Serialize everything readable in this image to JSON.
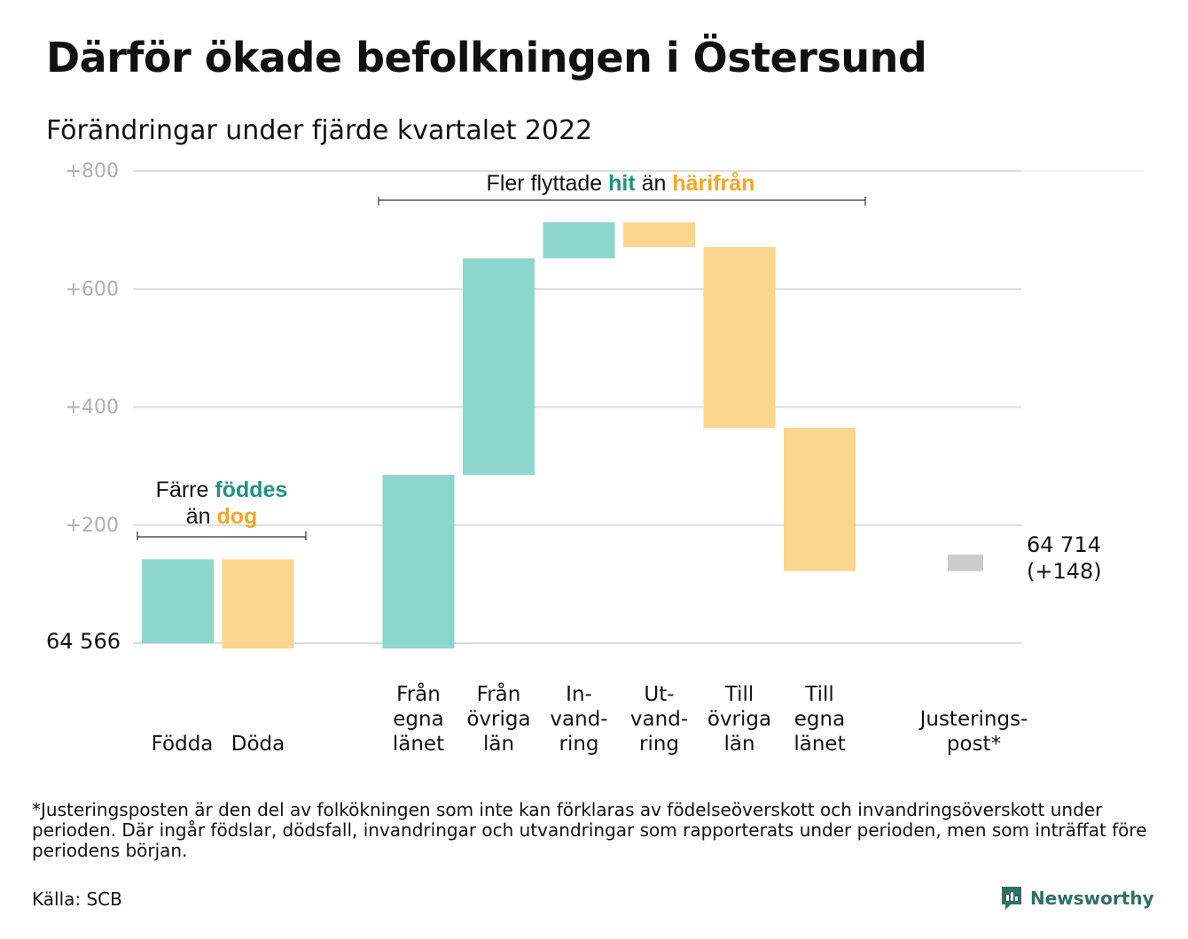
{
  "title": "Därför ökade befolkningen i Östersund",
  "subtitle": "Förändringar under fjärde kvartalet 2022",
  "footnote": "*Justeringsposten är den del av folkökningen som inte kan förklaras av födelseöverskott och invandringsöverskott under perioden. Där ingår födslar, dödsfall, invandringar och utvandringar som rapporterats under perioden, men som inträffat före periodens början.",
  "source": "Källa: SCB",
  "brand": {
    "name": "Newsworthy",
    "icon": "newsworthy-logo-icon"
  },
  "colors": {
    "increase": "#8dd6cd",
    "decrease": "#fad58e",
    "adjustment": "#cccccc",
    "line": "#1f9480",
    "hit": "#1f9480",
    "harifran": "#f5a623",
    "grid": "#dddddd",
    "tick": "#b0b0b0"
  },
  "chart_data": {
    "type": "waterfall",
    "start_value": 64566,
    "start_label": "64 566",
    "end_label": "64 714",
    "end_change_label": "(+148)",
    "y_ticks": [
      "+800",
      "+600",
      "+400",
      "+200"
    ],
    "y_tick_values": [
      800,
      600,
      400,
      200
    ],
    "ylim": [
      -20,
      800
    ],
    "steps": [
      {
        "label": [
          "Födda"
        ],
        "change": 142,
        "kind": "increase"
      },
      {
        "label": [
          "Döda"
        ],
        "change": -151,
        "kind": "decrease"
      },
      {
        "label": [],
        "change": 0,
        "kind": "gap"
      },
      {
        "label": [
          "Från",
          "egna",
          "länet"
        ],
        "change": 294,
        "kind": "increase"
      },
      {
        "label": [
          "Från",
          "övriga",
          "län"
        ],
        "change": 367,
        "kind": "increase"
      },
      {
        "label": [
          "In-",
          "vand-",
          "ring"
        ],
        "change": 61,
        "kind": "increase"
      },
      {
        "label": [
          "Ut-",
          "vand-",
          "ring"
        ],
        "change": -42,
        "kind": "decrease"
      },
      {
        "label": [
          "Till",
          "övriga",
          "län"
        ],
        "change": -306,
        "kind": "decrease"
      },
      {
        "label": [
          "Till",
          "egna",
          "länet"
        ],
        "change": -243,
        "kind": "decrease"
      },
      {
        "label": [],
        "change": 0,
        "kind": "gap"
      },
      {
        "label": [
          "Justerings-",
          "post*"
        ],
        "change": 28,
        "kind": "adjustment"
      }
    ],
    "annotations": [
      {
        "parts": [
          [
            "Färre ",
            "plain"
          ],
          [
            "föddes",
            "hit"
          ]
        ],
        "line2": [
          [
            "än ",
            "plain"
          ],
          [
            "dog",
            "harifran"
          ]
        ],
        "spans": "Födda–Döda"
      },
      {
        "parts": [
          [
            "Fler flyttade ",
            "plain"
          ],
          [
            "hit",
            "hit"
          ],
          [
            " än ",
            "plain"
          ],
          [
            "härifrån",
            "harifran"
          ]
        ],
        "spans": "Från egna länet–Till egna länet"
      }
    ]
  }
}
